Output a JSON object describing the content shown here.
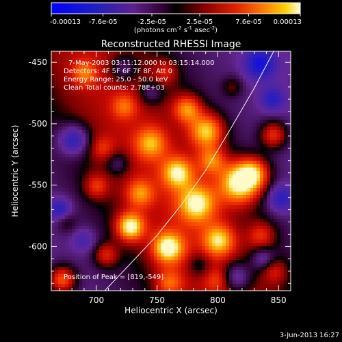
{
  "chart_data": {
    "type": "heatmap",
    "title": "Reconstructed RHESSI Image",
    "xlabel": "Heliocentric X (arcsec)",
    "ylabel": "Heliocentric Y (arcsec)",
    "xlim": [
      663,
      860
    ],
    "ylim": [
      -636,
      -441
    ],
    "x_ticks": [
      700,
      750,
      800,
      850
    ],
    "y_ticks": [
      -450,
      -500,
      -550,
      -600
    ],
    "colorbar": {
      "ticks": [
        "-0.00013",
        "-7.6e-05",
        "-2.5e-05",
        "2.5e-05",
        "7.6e-05",
        "0.00013"
      ],
      "unit_label_parts": [
        "(photons cm",
        "-2",
        " s",
        "-1",
        " asec",
        "-2",
        ")"
      ],
      "range": [
        -0.00013,
        0.00013
      ]
    },
    "annotations": [
      "7-May-2003 03:11:12.000 to 03:15:14.000",
      "Detectors: 4F 5F 6F 7F 8F, Att 0",
      "Energy Range: 25.0 - 50.0 keV",
      "Clean    Total counts: 2.78E+03"
    ],
    "peak_label": "Position of Peak = [819,-549]",
    "peak": [
      819,
      -549
    ],
    "limb_curve": [
      [
        707,
        -636
      ],
      [
        730,
        -612
      ],
      [
        750,
        -591
      ],
      [
        770,
        -566
      ],
      [
        790,
        -538
      ],
      [
        810,
        -505
      ],
      [
        830,
        -471
      ],
      [
        846,
        -441
      ]
    ],
    "hot_spots": [
      {
        "x": 728,
        "y": -584,
        "v": 1.0,
        "r": 8
      },
      {
        "x": 759,
        "y": -601,
        "v": 0.95,
        "r": 9
      },
      {
        "x": 791,
        "y": -506,
        "v": 0.9,
        "r": 10
      },
      {
        "x": 818,
        "y": -548,
        "v": 1.1,
        "r": 12
      },
      {
        "x": 783,
        "y": -565,
        "v": 0.85,
        "r": 11
      },
      {
        "x": 767,
        "y": -540,
        "v": 0.8,
        "r": 9
      },
      {
        "x": 801,
        "y": -595,
        "v": 0.75,
        "r": 9
      },
      {
        "x": 745,
        "y": -516,
        "v": 0.6,
        "r": 9
      },
      {
        "x": 775,
        "y": -488,
        "v": 0.7,
        "r": 8
      },
      {
        "x": 736,
        "y": -557,
        "v": 0.55,
        "r": 8
      },
      {
        "x": 700,
        "y": -551,
        "v": 0.45,
        "r": 7
      },
      {
        "x": 708,
        "y": -607,
        "v": 0.5,
        "r": 7
      },
      {
        "x": 672,
        "y": -627,
        "v": 0.8,
        "r": 8
      },
      {
        "x": 846,
        "y": -509,
        "v": 0.65,
        "r": 8
      },
      {
        "x": 836,
        "y": -591,
        "v": 0.45,
        "r": 8
      },
      {
        "x": 690,
        "y": -459,
        "v": 0.45,
        "r": 7
      },
      {
        "x": 723,
        "y": -486,
        "v": 0.4,
        "r": 7
      },
      {
        "x": 757,
        "y": -458,
        "v": 0.35,
        "r": 7
      },
      {
        "x": 812,
        "y": -470,
        "v": 0.3,
        "r": 6
      },
      {
        "x": 847,
        "y": -620,
        "v": 0.35,
        "r": 7
      },
      {
        "x": 760,
        "y": -630,
        "v": 0.5,
        "r": 8
      },
      {
        "x": 800,
        "y": -627,
        "v": 0.3,
        "r": 7
      },
      {
        "x": 675,
        "y": -580,
        "v": 0.25,
        "r": 6
      },
      {
        "x": 830,
        "y": -540,
        "v": 0.7,
        "r": 9
      },
      {
        "x": 795,
        "y": -530,
        "v": 0.6,
        "r": 8
      },
      {
        "x": 705,
        "y": -520,
        "v": 0.3,
        "r": 7
      }
    ],
    "cold_spots": [
      {
        "x": 682,
        "y": -513,
        "v": -0.6,
        "r": 9
      },
      {
        "x": 722,
        "y": -455,
        "v": -0.4,
        "r": 8
      },
      {
        "x": 835,
        "y": -451,
        "v": -0.55,
        "r": 9
      },
      {
        "x": 815,
        "y": -625,
        "v": -0.55,
        "r": 9
      },
      {
        "x": 670,
        "y": -570,
        "v": -0.45,
        "r": 7
      },
      {
        "x": 852,
        "y": -561,
        "v": -0.45,
        "r": 8
      },
      {
        "x": 837,
        "y": -610,
        "v": -0.4,
        "r": 7
      },
      {
        "x": 718,
        "y": -532,
        "v": -0.35,
        "r": 7
      },
      {
        "x": 745,
        "y": -475,
        "v": -0.35,
        "r": 7
      },
      {
        "x": 845,
        "y": -480,
        "v": -0.4,
        "r": 7
      },
      {
        "x": 785,
        "y": -615,
        "v": -0.3,
        "r": 7
      },
      {
        "x": 690,
        "y": -595,
        "v": -0.3,
        "r": 7
      }
    ]
  },
  "footer": {
    "date": "3-Jun-2013 16:27"
  }
}
